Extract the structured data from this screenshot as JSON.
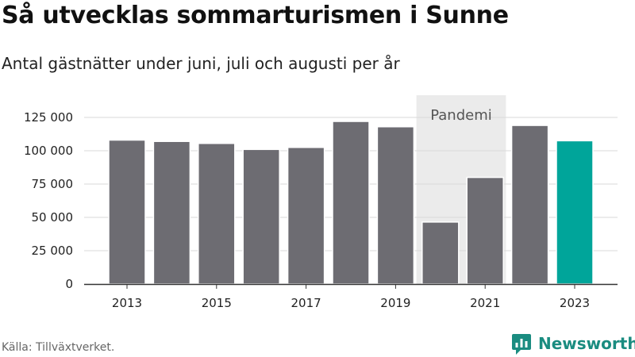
{
  "title": "Så utvecklas sommarturismen i Sunne",
  "subtitle": "Antal gästnätter under juni, juli och augusti per år",
  "source": "Källa: Tillväxtverket.",
  "brand": {
    "name": "Newsworthy",
    "color": "#1a8c80"
  },
  "colors": {
    "bar": "#6d6c72",
    "highlight": "#00a59a",
    "band": "#ebebeb",
    "annotation_text": "#555555"
  },
  "chart_data": {
    "type": "bar",
    "categories": [
      2013,
      2014,
      2015,
      2016,
      2017,
      2018,
      2019,
      2020,
      2021,
      2022,
      2023
    ],
    "x_tick_labels": [
      "2013",
      "2015",
      "2017",
      "2019",
      "2021",
      "2023"
    ],
    "values": [
      108000,
      107000,
      105500,
      101000,
      102500,
      122000,
      118000,
      46500,
      80000,
      119000,
      107500
    ],
    "highlight_category": 2023,
    "ylim": [
      0,
      125000
    ],
    "y_ticks": [
      0,
      25000,
      50000,
      75000,
      100000,
      125000
    ],
    "y_tick_labels": [
      "0",
      "25 000",
      "50 000",
      "75 000",
      "100 000",
      "125 000"
    ],
    "grid": true,
    "annotation": {
      "label": "Pandemi",
      "from": 2020,
      "to": 2021
    },
    "xlabel": "",
    "ylabel": ""
  }
}
